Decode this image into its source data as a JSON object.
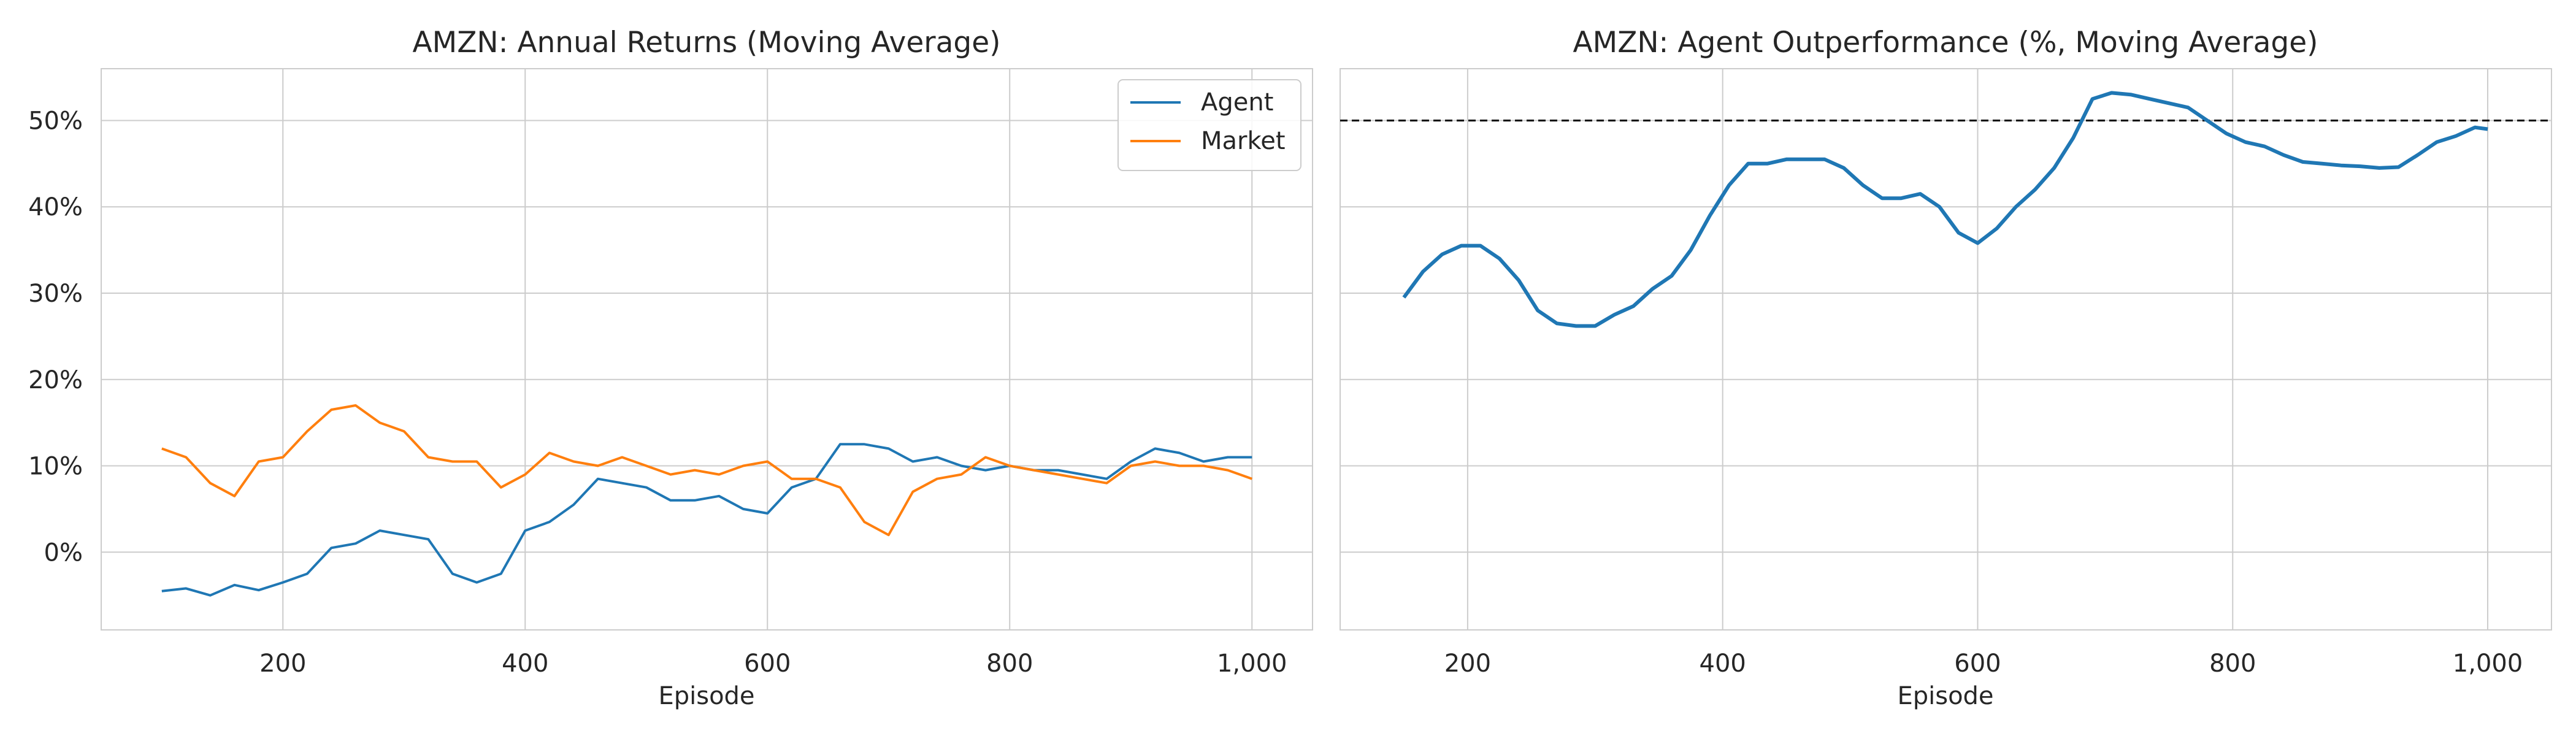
{
  "chart_data": [
    {
      "type": "line",
      "title": "AMZN: Annual Returns (Moving Average)",
      "xlabel": "Episode",
      "ylabel": "",
      "xlim": [
        50,
        1050
      ],
      "ylim": [
        -9,
        56
      ],
      "xticks": [
        200,
        400,
        600,
        800,
        1000
      ],
      "xtick_labels": [
        "200",
        "400",
        "600",
        "800",
        "1,000"
      ],
      "yticks": [
        0,
        10,
        20,
        30,
        40,
        50
      ],
      "ytick_labels": [
        "0%",
        "10%",
        "20%",
        "30%",
        "40%",
        "50%"
      ],
      "grid": true,
      "legend_position": "top-right",
      "x": [
        100,
        120,
        140,
        160,
        180,
        200,
        220,
        240,
        260,
        280,
        300,
        320,
        340,
        360,
        380,
        400,
        420,
        440,
        460,
        480,
        500,
        520,
        540,
        560,
        580,
        600,
        620,
        640,
        660,
        680,
        700,
        720,
        740,
        760,
        780,
        800,
        820,
        840,
        860,
        880,
        900,
        920,
        940,
        960,
        980,
        1000
      ],
      "series": [
        {
          "name": "Agent",
          "color": "#1f77b4",
          "values": [
            -4.5,
            -4.2,
            -5.0,
            -3.8,
            -4.4,
            -3.5,
            -2.5,
            0.5,
            1.0,
            2.5,
            2.0,
            1.5,
            -2.5,
            -3.5,
            -2.5,
            2.5,
            3.5,
            5.5,
            8.5,
            8.0,
            7.5,
            6.0,
            6.0,
            6.5,
            5.0,
            4.5,
            7.5,
            8.5,
            12.5,
            12.5,
            12.0,
            10.5,
            11.0,
            10.0,
            9.5,
            10.0,
            9.5,
            9.5,
            9.0,
            8.5,
            10.5,
            12.0,
            11.5,
            10.5,
            11.0,
            11.0
          ]
        },
        {
          "name": "Market",
          "color": "#ff7f0e",
          "values": [
            12.0,
            11.0,
            8.0,
            6.5,
            10.5,
            11.0,
            14.0,
            16.5,
            17.0,
            15.0,
            14.0,
            11.0,
            10.5,
            10.5,
            7.5,
            9.0,
            11.5,
            10.5,
            10.0,
            11.0,
            10.0,
            9.0,
            9.5,
            9.0,
            10.0,
            10.5,
            8.5,
            8.5,
            7.5,
            3.5,
            2.0,
            7.0,
            8.5,
            9.0,
            11.0,
            10.0,
            9.5,
            9.0,
            8.5,
            8.0,
            10.0,
            10.5,
            10.0,
            10.0,
            9.5,
            8.5
          ]
        }
      ]
    },
    {
      "type": "line",
      "title": "AMZN: Agent Outperformance (%, Moving Average)",
      "xlabel": "Episode",
      "ylabel": "",
      "xlim": [
        100,
        1050
      ],
      "ylim": [
        -9,
        56
      ],
      "xticks": [
        200,
        400,
        600,
        800,
        1000
      ],
      "xtick_labels": [
        "200",
        "400",
        "600",
        "800",
        "1,000"
      ],
      "grid": true,
      "reference_line": {
        "y": 50,
        "style": "dashed",
        "color": "#000000"
      },
      "x": [
        150,
        165,
        180,
        195,
        210,
        225,
        240,
        255,
        270,
        285,
        300,
        315,
        330,
        345,
        360,
        375,
        390,
        405,
        420,
        435,
        450,
        465,
        480,
        495,
        510,
        525,
        540,
        555,
        570,
        585,
        600,
        615,
        630,
        645,
        660,
        675,
        690,
        705,
        720,
        735,
        750,
        765,
        780,
        795,
        810,
        825,
        840,
        855,
        870,
        885,
        900,
        915,
        930,
        945,
        960,
        975,
        990,
        1000
      ],
      "series": [
        {
          "name": "",
          "color": "#1f77b4",
          "values": [
            29.5,
            32.5,
            34.5,
            35.5,
            35.5,
            34.0,
            31.5,
            28.0,
            26.5,
            26.2,
            26.2,
            27.5,
            28.5,
            30.5,
            32.0,
            35.0,
            39.0,
            42.5,
            45.0,
            45.0,
            45.5,
            45.5,
            45.5,
            44.5,
            42.5,
            41.0,
            41.0,
            41.5,
            40.0,
            37.0,
            35.8,
            37.5,
            40.0,
            42.0,
            44.5,
            48.0,
            52.5,
            53.2,
            53.0,
            52.5,
            52.0,
            51.5,
            50.0,
            48.5,
            47.5,
            47.0,
            46.0,
            45.2,
            45.0,
            44.8,
            44.7,
            44.5,
            44.6,
            46.0,
            47.5,
            48.2,
            49.2,
            49.0
          ]
        }
      ]
    }
  ]
}
